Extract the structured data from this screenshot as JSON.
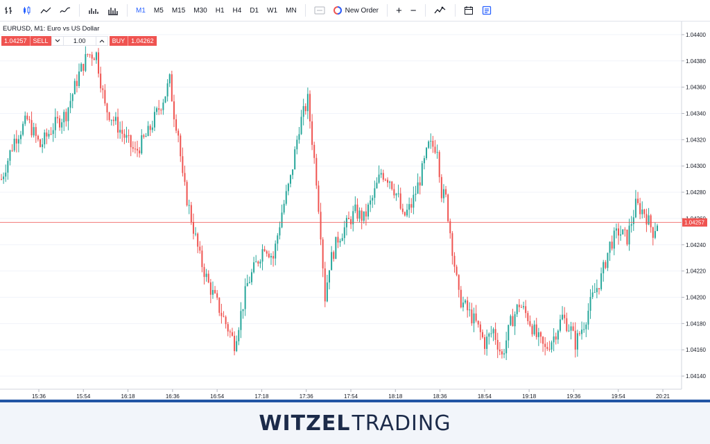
{
  "toolbar": {
    "timeframes": [
      "M1",
      "M5",
      "M15",
      "M30",
      "H1",
      "H4",
      "D1",
      "W1",
      "MN"
    ],
    "active_timeframe": "M1",
    "new_order_label": "New Order",
    "plus_label": "+",
    "minus_label": "−"
  },
  "chart_header": {
    "title": "EURUSD, M1: Euro vs US Dollar",
    "sell_price": "1.04257",
    "sell_label": "SELL",
    "quantity": "1.00",
    "buy_label": "BUY",
    "buy_price": "1.04262"
  },
  "footer": {
    "logo_bold": "WITZEL",
    "logo_rest": "TRADING"
  },
  "colors": {
    "up": "#26a69a",
    "down": "#ef5350",
    "price_line": "#ef5350",
    "accent": "#2962ff",
    "footer_bar": "#2255a4"
  },
  "chart_data": {
    "type": "candlestick",
    "symbol": "EURUSD",
    "timeframe": "M1",
    "ylim": [
      1.0413,
      1.0441
    ],
    "y_ticks": [
      "1.04400",
      "1.04380",
      "1.04360",
      "1.04340",
      "1.04320",
      "1.04300",
      "1.04280",
      "1.04260",
      "1.04240",
      "1.04220",
      "1.04200",
      "1.04180",
      "1.04160",
      "1.04140"
    ],
    "y_tick_values": [
      1.044,
      1.0438,
      1.0436,
      1.0434,
      1.0432,
      1.043,
      1.0428,
      1.0426,
      1.0424,
      1.0422,
      1.042,
      1.0418,
      1.0416,
      1.0414
    ],
    "x_ticks": [
      "15:36",
      "15:54",
      "16:18",
      "16:36",
      "16:54",
      "17:18",
      "17:36",
      "17:54",
      "18:18",
      "18:36",
      "18:54",
      "19:18",
      "19:36",
      "19:54",
      "20:21"
    ],
    "current_price": 1.04257,
    "current_price_label": "1.04257",
    "close_path": [
      [
        0,
        1.0429
      ],
      [
        6,
        1.0432
      ],
      [
        12,
        1.04335
      ],
      [
        18,
        1.04315
      ],
      [
        24,
        1.0433
      ],
      [
        30,
        1.0434
      ],
      [
        36,
        1.0437
      ],
      [
        40,
        1.04385
      ],
      [
        44,
        1.04385
      ],
      [
        48,
        1.04345
      ],
      [
        52,
        1.04335
      ],
      [
        56,
        1.04325
      ],
      [
        62,
        1.0431
      ],
      [
        68,
        1.04325
      ],
      [
        72,
        1.0434
      ],
      [
        76,
        1.04355
      ],
      [
        78,
        1.04365
      ],
      [
        80,
        1.0434
      ],
      [
        82,
        1.04325
      ],
      [
        84,
        1.0429
      ],
      [
        88,
        1.0426
      ],
      [
        92,
        1.0423
      ],
      [
        96,
        1.0421
      ],
      [
        100,
        1.04195
      ],
      [
        104,
        1.0418
      ],
      [
        108,
        1.04165
      ],
      [
        110,
        1.0418
      ],
      [
        114,
        1.0421
      ],
      [
        118,
        1.04225
      ],
      [
        122,
        1.0424
      ],
      [
        126,
        1.0423
      ],
      [
        130,
        1.04265
      ],
      [
        134,
        1.0429
      ],
      [
        138,
        1.0433
      ],
      [
        142,
        1.0435
      ],
      [
        144,
        1.0432
      ],
      [
        146,
        1.0429
      ],
      [
        148,
        1.0425
      ],
      [
        150,
        1.042
      ],
      [
        152,
        1.04225
      ],
      [
        156,
        1.04245
      ],
      [
        160,
        1.04255
      ],
      [
        164,
        1.04265
      ],
      [
        168,
        1.0426
      ],
      [
        172,
        1.04275
      ],
      [
        176,
        1.04295
      ],
      [
        180,
        1.0429
      ],
      [
        184,
        1.04275
      ],
      [
        186,
        1.0426
      ],
      [
        190,
        1.0427
      ],
      [
        194,
        1.0429
      ],
      [
        198,
        1.04315
      ],
      [
        202,
        1.04315
      ],
      [
        204,
        1.0428
      ],
      [
        206,
        1.04275
      ],
      [
        208,
        1.0425
      ],
      [
        212,
        1.042
      ],
      [
        216,
        1.0419
      ],
      [
        220,
        1.0418
      ],
      [
        224,
        1.04165
      ],
      [
        228,
        1.04175
      ],
      [
        232,
        1.04155
      ],
      [
        236,
        1.0418
      ],
      [
        240,
        1.04195
      ],
      [
        244,
        1.04185
      ],
      [
        248,
        1.0417
      ],
      [
        252,
        1.0416
      ],
      [
        256,
        1.0417
      ],
      [
        260,
        1.04185
      ],
      [
        264,
        1.04175
      ],
      [
        266,
        1.04165
      ],
      [
        270,
        1.0418
      ],
      [
        274,
        1.042
      ],
      [
        278,
        1.04215
      ],
      [
        282,
        1.0424
      ],
      [
        286,
        1.0425
      ],
      [
        290,
        1.04245
      ],
      [
        294,
        1.0427
      ],
      [
        298,
        1.04265
      ],
      [
        302,
        1.0425
      ],
      [
        304,
        1.04257
      ]
    ]
  }
}
